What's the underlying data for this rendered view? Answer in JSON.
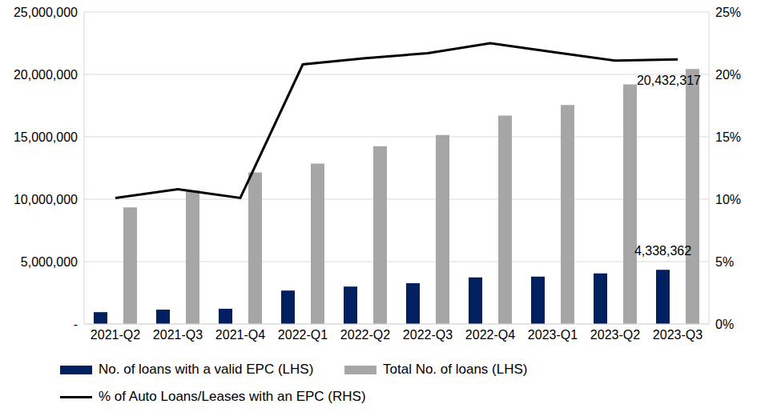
{
  "chart_data": {
    "type": "bar",
    "categories": [
      "2021-Q2",
      "2021-Q3",
      "2021-Q4",
      "2022-Q1",
      "2022-Q2",
      "2022-Q3",
      "2022-Q4",
      "2023-Q1",
      "2023-Q2",
      "2023-Q3"
    ],
    "series": [
      {
        "name": "No. of loans with a valid EPC (LHS)",
        "type": "bar",
        "color": "#002060",
        "values": [
          950000,
          1150000,
          1220000,
          2680000,
          3000000,
          3270000,
          3740000,
          3800000,
          4050000,
          4338362
        ],
        "value_labels": [
          null,
          null,
          null,
          null,
          null,
          null,
          null,
          null,
          null,
          "4,338,362"
        ]
      },
      {
        "name": "Total No. of loans (LHS)",
        "type": "bar",
        "color": "#A6A6A6",
        "values": [
          9350000,
          10700000,
          12150000,
          12850000,
          14250000,
          15150000,
          16700000,
          17550000,
          19200000,
          20432317
        ],
        "value_labels": [
          null,
          null,
          null,
          null,
          null,
          null,
          null,
          null,
          null,
          "20,432,317"
        ]
      },
      {
        "name": "% of Auto Loans/Leases with an EPC (RHS)",
        "type": "line",
        "axis": "y2",
        "color": "#000000",
        "values": [
          10.1,
          10.8,
          10.1,
          20.8,
          21.3,
          21.7,
          22.5,
          21.8,
          21.1,
          21.2
        ]
      }
    ],
    "ylim": [
      0,
      25000000
    ],
    "yticks": [
      {
        "value": 0,
        "label": "-"
      },
      {
        "value": 5000000,
        "label": "5,000,000"
      },
      {
        "value": 10000000,
        "label": "10,000,000"
      },
      {
        "value": 15000000,
        "label": "15,000,000"
      },
      {
        "value": 20000000,
        "label": "20,000,000"
      },
      {
        "value": 25000000,
        "label": "25,000,000"
      }
    ],
    "y2lim": [
      0,
      25
    ],
    "y2ticks": [
      {
        "value": 0,
        "label": "0%"
      },
      {
        "value": 5,
        "label": "5%"
      },
      {
        "value": 10,
        "label": "10%"
      },
      {
        "value": 15,
        "label": "15%"
      },
      {
        "value": 20,
        "label": "20%"
      },
      {
        "value": 25,
        "label": "25%"
      }
    ],
    "grid": true,
    "legend": "bottom"
  }
}
